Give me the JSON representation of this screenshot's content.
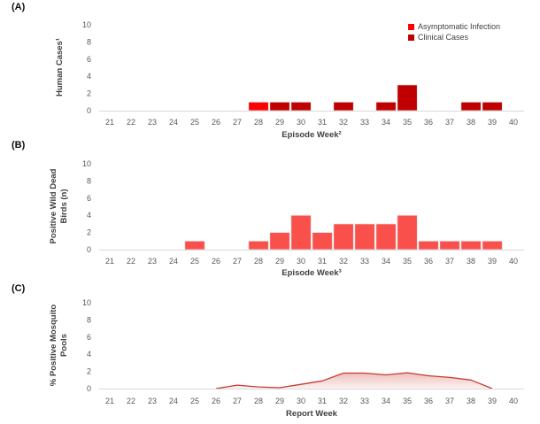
{
  "panels": [
    {
      "label": "(A)"
    },
    {
      "label": "(B)"
    },
    {
      "label": "(C)"
    }
  ],
  "chart_data": [
    {
      "id": "human-cases",
      "type": "bar",
      "stacked": true,
      "title": "",
      "xlabel": "Episode Week²",
      "ylabel": "Human Cases¹",
      "ylabel_lines": [
        "Human Cases¹"
      ],
      "categories": [
        "21",
        "22",
        "23",
        "24",
        "25",
        "26",
        "27",
        "28",
        "29",
        "30",
        "31",
        "32",
        "33",
        "34",
        "35",
        "36",
        "37",
        "38",
        "39",
        "40"
      ],
      "ylim": [
        0,
        10
      ],
      "ytick_step": 2,
      "grid": false,
      "legend_position": "top-right",
      "series": [
        {
          "name": "Asymptomatic Infection",
          "color": "#FF0000",
          "values": [
            0,
            0,
            0,
            0,
            0,
            0,
            0,
            1,
            0,
            0,
            0,
            0,
            0,
            0,
            0,
            0,
            0,
            0,
            0,
            0
          ]
        },
        {
          "name": "Clinical Cases",
          "color": "#C00000",
          "values": [
            0,
            0,
            0,
            0,
            0,
            0,
            0,
            0,
            1,
            1,
            0,
            1,
            0,
            1,
            3,
            0,
            0,
            1,
            1,
            0
          ]
        }
      ]
    },
    {
      "id": "positive-wild-dead-birds",
      "type": "bar",
      "stacked": false,
      "title": "",
      "xlabel": "Episode Week³",
      "ylabel": "Positive Wild Dead Birds (n)",
      "ylabel_lines": [
        "Positive Wild Dead",
        "Birds (n)"
      ],
      "categories": [
        "21",
        "22",
        "23",
        "24",
        "25",
        "26",
        "27",
        "28",
        "29",
        "30",
        "31",
        "32",
        "33",
        "34",
        "35",
        "36",
        "37",
        "38",
        "39",
        "40"
      ],
      "ylim": [
        0,
        10
      ],
      "ytick_step": 2,
      "grid": false,
      "legend_position": "none",
      "series": [
        {
          "name": "Positive Wild Dead Birds (n)",
          "color": "#FA504C",
          "values": [
            0,
            0,
            0,
            0,
            1,
            0,
            0,
            1,
            2,
            4,
            2,
            3,
            3,
            3,
            4,
            1,
            1,
            1,
            1,
            0
          ]
        }
      ]
    },
    {
      "id": "percent-positive-mosquito-pools",
      "type": "line",
      "area_fill": true,
      "title": "",
      "xlabel": "Report Week",
      "ylabel": "% Positive Mosquito Pools",
      "ylabel_lines": [
        "% Positive Mosquito",
        "Pools"
      ],
      "categories": [
        "21",
        "22",
        "23",
        "24",
        "25",
        "26",
        "27",
        "28",
        "29",
        "30",
        "31",
        "32",
        "33",
        "34",
        "35",
        "36",
        "37",
        "38",
        "39",
        "40"
      ],
      "ylim": [
        0,
        10
      ],
      "ytick_step": 2,
      "grid": false,
      "legend_position": "none",
      "series": [
        {
          "name": "% Positive Mosquito Pools",
          "color": "#C9392D",
          "values": [
            null,
            null,
            null,
            null,
            null,
            0,
            0.4,
            0.2,
            0.1,
            0.5,
            0.9,
            1.8,
            1.8,
            1.6,
            1.85,
            1.5,
            1.3,
            1.0,
            0,
            null
          ]
        }
      ]
    }
  ]
}
